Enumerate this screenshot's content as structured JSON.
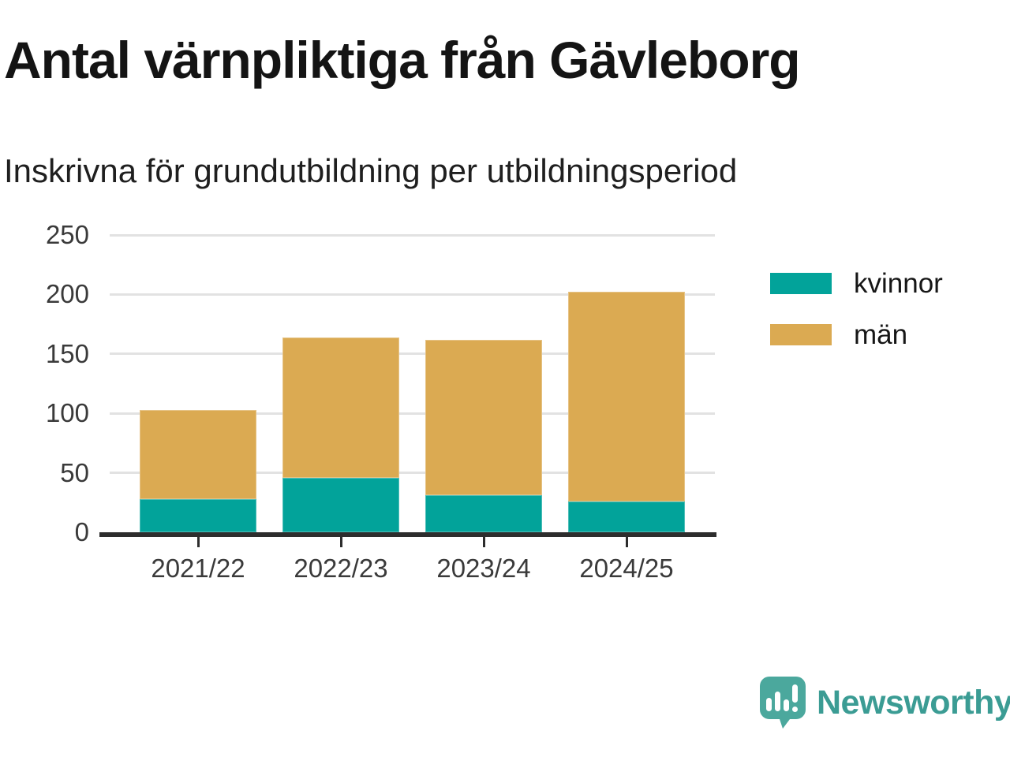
{
  "header": {
    "title": "Antal värnpliktiga från Gävleborg",
    "subtitle": "Inskrivna för grundutbildning per utbildningsperiod"
  },
  "chart_data": {
    "type": "bar",
    "stacked": true,
    "title": "Antal värnpliktiga från Gävleborg",
    "subtitle": "Inskrivna för grundutbildning per utbildningsperiod",
    "categories": [
      "2021/22",
      "2022/23",
      "2023/24",
      "2024/25"
    ],
    "series": [
      {
        "name": "kvinnor",
        "color": "#02a39a",
        "values": [
          28,
          46,
          31,
          26
        ]
      },
      {
        "name": "män",
        "color": "#dbaa52",
        "values": [
          75,
          118,
          131,
          176
        ]
      }
    ],
    "totals": [
      103,
      164,
      162,
      202
    ],
    "xlabel": "",
    "ylabel": "",
    "ylim": [
      0,
      250
    ],
    "yticks": [
      0,
      50,
      100,
      150,
      200,
      250
    ],
    "grid": true,
    "legend_position": "right"
  },
  "branding": {
    "logo_text": "Newsworthy",
    "logo_text_color": "#3b9c94",
    "icon_color": "#4ba89d"
  },
  "colors": {
    "background": "#ffffff",
    "gridline": "#e2e2e2",
    "axis": "#2d2d2d",
    "tick_label": "#3a3a3a",
    "title_text": "#141414"
  }
}
